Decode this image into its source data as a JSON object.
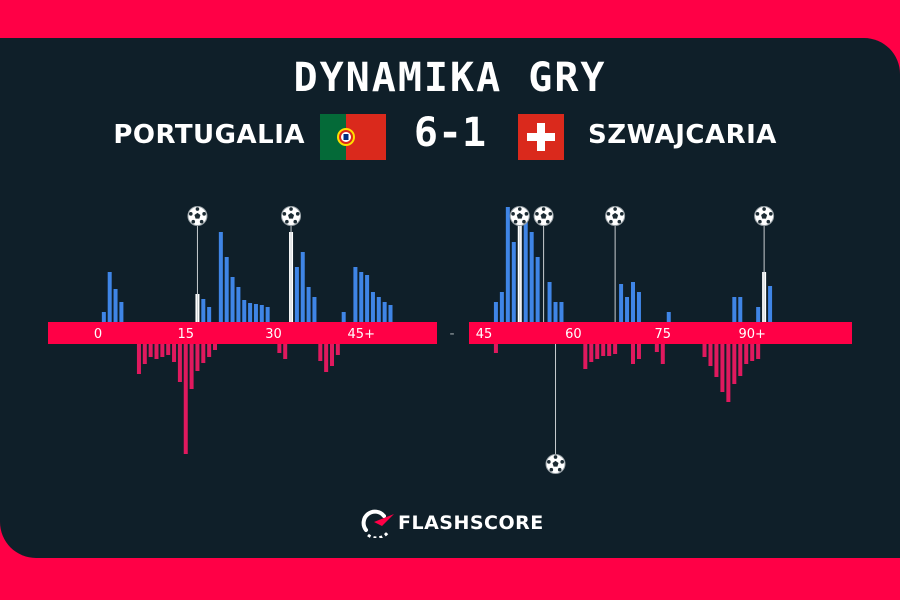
{
  "title": "DYNAMIKA GRY",
  "home_team": {
    "name": "PORTUGALIA",
    "flag": "portugal-flag",
    "color": "#3F85E6"
  },
  "away_team": {
    "name": "SZWAJCARIA",
    "flag": "switzerland-flag",
    "color": "#E0195E"
  },
  "score": "6-1",
  "brand": {
    "name": "FLASHSCORE",
    "accent": "#FF0046",
    "background": "#0F1F29"
  },
  "chart_data": {
    "type": "bar",
    "ylim": [
      -100,
      100
    ],
    "halves": [
      {
        "ticks": [
          {
            "label": "0",
            "minute": 0
          },
          {
            "label": "15",
            "minute": 15
          },
          {
            "label": "30",
            "minute": 30
          },
          {
            "label": "45+",
            "minute": 45
          }
        ],
        "series": [
          {
            "name": "PORTUGALIA",
            "minute_start": 0,
            "values": [
              0,
              10,
              50,
              33,
              20,
              0,
              0,
              0,
              0,
              0,
              0,
              0,
              0,
              0,
              0,
              0,
              0,
              28,
              23,
              15,
              0,
              90,
              65,
              45,
              35,
              22,
              19,
              18,
              17,
              15,
              0,
              0,
              0,
              90,
              55,
              70,
              35,
              25,
              0,
              0,
              0,
              0,
              10,
              0,
              55,
              50,
              47,
              30,
              25,
              20,
              17
            ]
          },
          {
            "name": "SZWAJCARIA",
            "minute_start": 0,
            "values": [
              0,
              0,
              0,
              0,
              0,
              0,
              0,
              30,
              20,
              13,
              15,
              13,
              11,
              18,
              38,
              110,
              45,
              27,
              19,
              13,
              6,
              0,
              0,
              0,
              0,
              0,
              0,
              0,
              0,
              0,
              0,
              9,
              15,
              0,
              0,
              0,
              0,
              0,
              17,
              28,
              22,
              11,
              0,
              0,
              0,
              0,
              0,
              0,
              0,
              0,
              0
            ]
          }
        ],
        "goals": [
          {
            "minute": 17,
            "team": "PORTUGALIA",
            "icon": "ball-icon"
          },
          {
            "minute": 33,
            "team": "PORTUGALIA",
            "icon": "ball-icon"
          }
        ]
      },
      {
        "ticks": [
          {
            "label": "45",
            "minute": 45
          },
          {
            "label": "60",
            "minute": 60
          },
          {
            "label": "75",
            "minute": 75
          },
          {
            "label": "90+",
            "minute": 90
          }
        ],
        "series": [
          {
            "name": "PORTUGALIA",
            "minute_start": 45,
            "values": [
              0,
              0,
              20,
              30,
              115,
              80,
              100,
              110,
              90,
              65,
              0,
              40,
              20,
              20,
              0,
              0,
              0,
              0,
              0,
              0,
              0,
              0,
              0,
              38,
              25,
              40,
              30,
              0,
              0,
              0,
              0,
              10,
              0,
              0,
              0,
              0,
              0,
              0,
              0,
              0,
              0,
              0,
              25,
              25,
              0,
              0,
              15,
              50,
              36
            ]
          },
          {
            "name": "SZWAJCARIA",
            "minute_start": 45,
            "values": [
              0,
              0,
              9,
              0,
              0,
              0,
              0,
              0,
              0,
              0,
              0,
              0,
              0,
              0,
              0,
              0,
              0,
              25,
              18,
              15,
              12,
              12,
              10,
              0,
              0,
              20,
              15,
              0,
              0,
              8,
              20,
              0,
              0,
              0,
              0,
              0,
              0,
              13,
              22,
              33,
              48,
              58,
              40,
              32,
              20,
              17,
              15,
              0,
              0
            ]
          }
        ],
        "goals": [
          {
            "minute": 51,
            "team": "PORTUGALIA",
            "icon": "ball-icon"
          },
          {
            "minute": 55,
            "team": "PORTUGALIA",
            "icon": "ball-icon"
          },
          {
            "minute": 57,
            "team": "SZWAJCARIA",
            "icon": "ball-icon"
          },
          {
            "minute": 67,
            "team": "PORTUGALIA",
            "icon": "ball-icon"
          },
          {
            "minute": 92,
            "team": "PORTUGALIA",
            "icon": "ball-icon"
          }
        ]
      }
    ],
    "half_separator": "-"
  }
}
